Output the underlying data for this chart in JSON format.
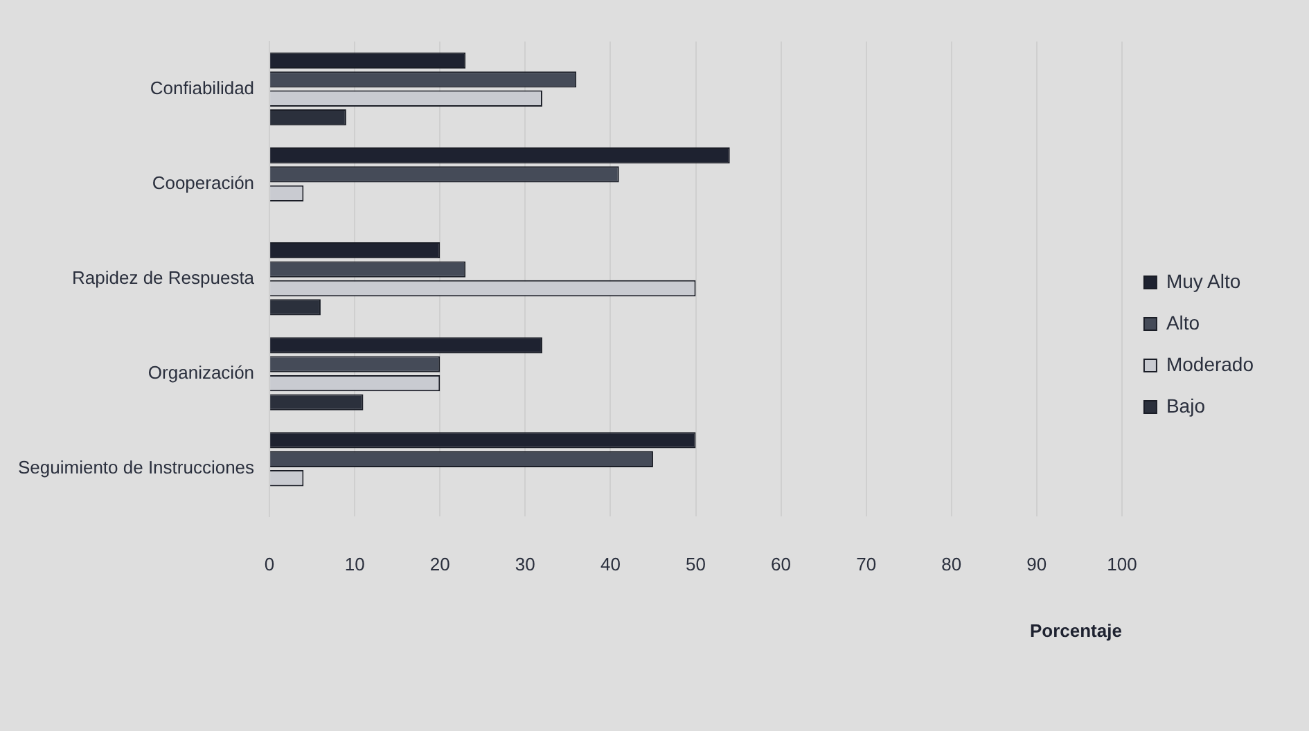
{
  "chart_data": {
    "type": "bar",
    "orientation": "horizontal",
    "xlabel": "Porcentaje",
    "categories": [
      "Confiabilidad",
      "Cooperación",
      "Rapidez de Respuesta",
      "Organización",
      "Seguimiento de Instrucciones"
    ],
    "series": [
      {
        "name": "Muy Alto",
        "color": "#1e2230",
        "values": [
          23,
          54,
          20,
          32,
          50
        ]
      },
      {
        "name": "Alto",
        "color": "#454b58",
        "values": [
          36,
          41,
          23,
          20,
          45
        ]
      },
      {
        "name": "Moderado",
        "color": "#c9cbd1",
        "values": [
          32,
          4,
          50,
          20,
          4
        ]
      },
      {
        "name": "Bajo",
        "color": "#2b303c",
        "values": [
          9,
          0,
          6,
          11,
          0
        ]
      }
    ],
    "xlim": [
      0,
      100
    ],
    "xticks": [
      0,
      10,
      20,
      30,
      40,
      50,
      60,
      70,
      80,
      90,
      100
    ],
    "grid": "x",
    "legend": "right"
  }
}
